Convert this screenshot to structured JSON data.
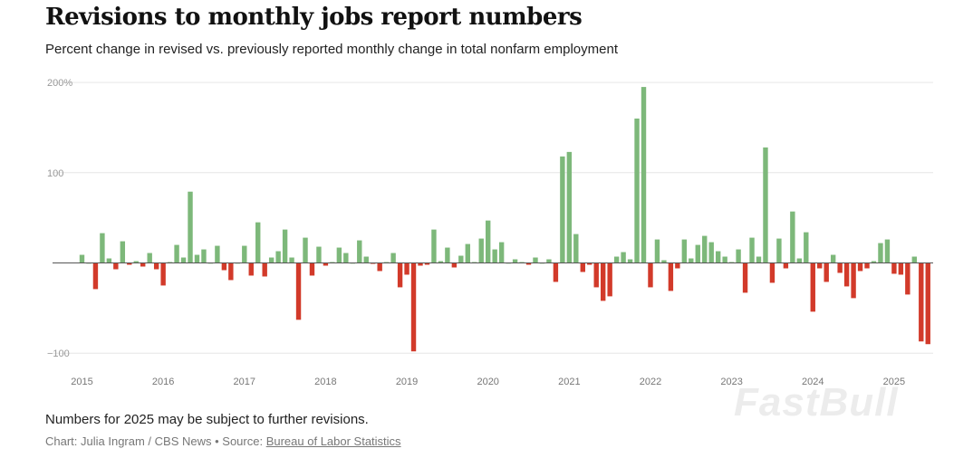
{
  "header": {
    "title": "Revisions to monthly jobs report numbers",
    "subtitle": "Percent change in revised vs. previously reported monthly change in total nonfarm employment"
  },
  "footer": {
    "note": "Numbers for 2025 may be subject to further revisions.",
    "credit_prefix": "Chart: Julia Ingram / CBS News • Source: ",
    "source_link": "Bureau of Labor Statistics"
  },
  "watermark": "FastBull",
  "chart_data": {
    "type": "bar",
    "title": "Revisions to monthly jobs report numbers",
    "subtitle": "Percent change in revised vs. previously reported monthly change in total nonfarm employment",
    "xlabel": "",
    "ylabel": "",
    "ylim": [
      -110,
      200
    ],
    "y_ticks": [
      {
        "value": 200,
        "label": "200%"
      },
      {
        "value": 100,
        "label": "100"
      },
      {
        "value": -100,
        "label": "−100"
      }
    ],
    "x_tick_labels": [
      "2015",
      "2016",
      "2017",
      "2018",
      "2019",
      "2020",
      "2021",
      "2022",
      "2023",
      "2024",
      "2025"
    ],
    "grid": true,
    "colors": {
      "positive": "#7db87a",
      "negative": "#d23a2a"
    },
    "categories": [
      "2015-01",
      "2015-02",
      "2015-03",
      "2015-04",
      "2015-05",
      "2015-06",
      "2015-07",
      "2015-08",
      "2015-09",
      "2015-10",
      "2015-11",
      "2015-12",
      "2016-01",
      "2016-02",
      "2016-03",
      "2016-04",
      "2016-05",
      "2016-06",
      "2016-07",
      "2016-08",
      "2016-09",
      "2016-10",
      "2016-11",
      "2016-12",
      "2017-01",
      "2017-02",
      "2017-03",
      "2017-04",
      "2017-05",
      "2017-06",
      "2017-07",
      "2017-08",
      "2017-09",
      "2017-10",
      "2017-11",
      "2017-12",
      "2018-01",
      "2018-02",
      "2018-03",
      "2018-04",
      "2018-05",
      "2018-06",
      "2018-07",
      "2018-08",
      "2018-09",
      "2018-10",
      "2018-11",
      "2018-12",
      "2019-01",
      "2019-02",
      "2019-03",
      "2019-04",
      "2019-05",
      "2019-06",
      "2019-07",
      "2019-08",
      "2019-09",
      "2019-10",
      "2019-11",
      "2019-12",
      "2020-01",
      "2020-02",
      "2020-03",
      "2020-04",
      "2020-05",
      "2020-06",
      "2020-07",
      "2020-08",
      "2020-09",
      "2020-10",
      "2020-11",
      "2020-12",
      "2021-01",
      "2021-02",
      "2021-03",
      "2021-04",
      "2021-05",
      "2021-06",
      "2021-07",
      "2021-08",
      "2021-09",
      "2021-10",
      "2021-11",
      "2021-12",
      "2022-01",
      "2022-02",
      "2022-03",
      "2022-04",
      "2022-05",
      "2022-06",
      "2022-07",
      "2022-08",
      "2022-09",
      "2022-10",
      "2022-11",
      "2022-12",
      "2023-01",
      "2023-02",
      "2023-03",
      "2023-04",
      "2023-05",
      "2023-06",
      "2023-07",
      "2023-08",
      "2023-09",
      "2023-10",
      "2023-11",
      "2023-12",
      "2024-01",
      "2024-02",
      "2024-03",
      "2024-04",
      "2024-05",
      "2024-06",
      "2024-07",
      "2024-08",
      "2024-09",
      "2024-10",
      "2024-11",
      "2024-12",
      "2025-01",
      "2025-02",
      "2025-03",
      "2025-04",
      "2025-05",
      "2025-06"
    ],
    "values": [
      9,
      0,
      -29,
      33,
      5,
      -7,
      24,
      -2,
      2,
      -4,
      11,
      -7,
      -25,
      1,
      20,
      6,
      79,
      9,
      15,
      0,
      19,
      -8,
      -19,
      0,
      19,
      -14,
      45,
      -15,
      6,
      13,
      37,
      6,
      -63,
      28,
      -14,
      18,
      -3,
      1,
      17,
      11,
      0,
      25,
      7,
      -1,
      -9,
      1,
      11,
      -27,
      -13,
      -98,
      -3,
      -2,
      37,
      2,
      17,
      -5,
      8,
      21,
      1,
      27,
      47,
      15,
      23,
      0,
      4,
      1,
      -2,
      6,
      0,
      4,
      -21,
      118,
      123,
      32,
      -10,
      -2,
      -27,
      -42,
      -37,
      7,
      12,
      4,
      160,
      195,
      -27,
      26,
      3,
      -31,
      -6,
      26,
      5,
      20,
      30,
      23,
      13,
      7,
      1,
      15,
      -33,
      28,
      7,
      128,
      -22,
      27,
      -6,
      57,
      5,
      34,
      -54,
      -6,
      -21,
      9,
      -11,
      -26,
      -39,
      -9,
      -6,
      2,
      22,
      26,
      -12,
      -13,
      -35,
      7,
      -87,
      -90
    ]
  }
}
